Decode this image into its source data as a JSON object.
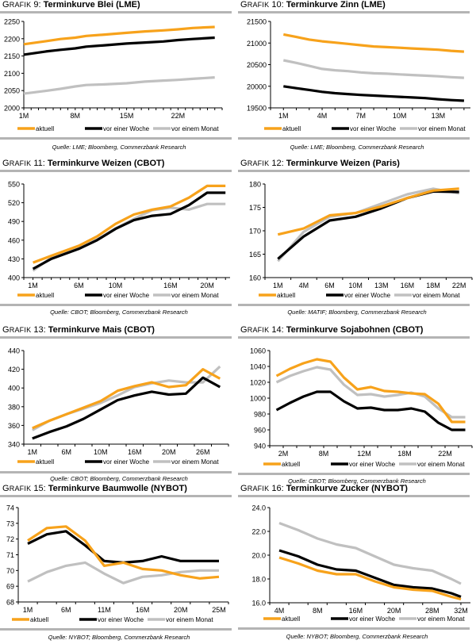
{
  "legend_labels": [
    "aktuell",
    "vor einer Woche",
    "vor einem Monat"
  ],
  "series_colors": {
    "aktuell": "#f7a21b",
    "vor einer Woche": "#000000",
    "vor einem Monat": "#c0c0c0"
  },
  "chart_data": [
    {
      "type": "line",
      "prefix": "Grafik",
      "number": "9:",
      "title": "Terminkurve Blei (LME)",
      "source": "Quelle: LME; Bloomberg, Commerzbank Research",
      "ylim": [
        2000,
        2250
      ],
      "yticks": [
        "2000",
        "2050",
        "2100",
        "2150",
        "2200",
        "2250"
      ],
      "xlim": [
        1,
        28
      ],
      "xticks": [
        {
          "x": 1,
          "label": "1M"
        },
        {
          "x": 8,
          "label": "8M"
        },
        {
          "x": 15,
          "label": "15M"
        },
        {
          "x": 22,
          "label": "22M"
        }
      ],
      "x": [
        1,
        4,
        6,
        8,
        9.5,
        12,
        15,
        17.5,
        20,
        22,
        24,
        27
      ],
      "series": [
        {
          "name": "aktuell",
          "values": [
            2184,
            2193,
            2199,
            2203,
            2208,
            2212,
            2217,
            2221,
            2224,
            2227,
            2231,
            2234
          ]
        },
        {
          "name": "vor einer Woche",
          "values": [
            2154,
            2163,
            2168,
            2172,
            2177,
            2181,
            2186,
            2189,
            2192,
            2196,
            2199,
            2203
          ]
        },
        {
          "name": "vor einem Monat",
          "values": [
            2041,
            2049,
            2055,
            2062,
            2066,
            2068,
            2071,
            2076,
            2079,
            2081,
            2084,
            2088
          ]
        }
      ],
      "legend": "bottom",
      "grid": false
    },
    {
      "type": "line",
      "prefix": "Grafik",
      "number": "10:",
      "title": "Terminkurve Zinn (LME)",
      "source": "Quelle: LME; Bloomberg, Commerzbank Research",
      "ylim": [
        19500,
        21500
      ],
      "yticks": [
        "19500",
        "20000",
        "20500",
        "21000",
        "21500"
      ],
      "xlim": [
        0,
        15.5
      ],
      "xticks": [
        {
          "x": 1,
          "label": "1M"
        },
        {
          "x": 4,
          "label": "4M"
        },
        {
          "x": 7,
          "label": "7M"
        },
        {
          "x": 10,
          "label": "10M"
        },
        {
          "x": 13,
          "label": "13M"
        }
      ],
      "x": [
        1,
        2,
        3,
        4,
        5,
        6,
        7,
        8,
        9,
        10,
        11,
        12,
        13,
        14,
        15
      ],
      "series": [
        {
          "name": "aktuell",
          "values": [
            21200,
            21140,
            21080,
            21040,
            21010,
            20980,
            20950,
            20920,
            20905,
            20890,
            20875,
            20860,
            20845,
            20820,
            20800
          ]
        },
        {
          "name": "vor einer Woche",
          "values": [
            20000,
            19955,
            19915,
            19870,
            19840,
            19820,
            19800,
            19785,
            19770,
            19755,
            19740,
            19725,
            19700,
            19680,
            19665
          ]
        },
        {
          "name": "vor einem Monat",
          "values": [
            20600,
            20540,
            20470,
            20400,
            20370,
            20350,
            20320,
            20300,
            20290,
            20275,
            20260,
            20245,
            20230,
            20210,
            20195
          ]
        }
      ],
      "legend": "bottom",
      "grid": false
    },
    {
      "type": "line",
      "prefix": "Grafik",
      "number": "11:",
      "title": "Terminkurve Weizen (CBOT)",
      "source": "Quelle: CBOT; Bloomberg, Commerzbank Research",
      "ylim": [
        400,
        550
      ],
      "yticks": [
        "400",
        "430",
        "460",
        "490",
        "520",
        "550"
      ],
      "xlim": [
        0,
        22.5
      ],
      "xticks": [
        {
          "x": 1,
          "label": "1M"
        },
        {
          "x": 6,
          "label": "6M"
        },
        {
          "x": 10,
          "label": "10M"
        },
        {
          "x": 16,
          "label": "16M"
        },
        {
          "x": 20,
          "label": "20M"
        }
      ],
      "x": [
        1,
        3,
        6,
        8,
        10,
        12,
        14,
        16,
        18,
        20,
        22
      ],
      "series": [
        {
          "name": "aktuell",
          "values": [
            424,
            435,
            451,
            466,
            486,
            501,
            509,
            514,
            528,
            547,
            547
          ]
        },
        {
          "name": "vor einer Woche",
          "values": [
            414,
            430,
            446,
            460,
            478,
            492,
            499,
            502,
            516,
            536,
            536
          ]
        },
        {
          "name": "vor einem Monat",
          "values": [
            411,
            432,
            448,
            461,
            479,
            494,
            508,
            512,
            509,
            518,
            518
          ]
        }
      ],
      "legend": "bottom",
      "grid": false
    },
    {
      "type": "line",
      "prefix": "Grafik",
      "number": "12:",
      "title": "Terminkurve Weizen (Paris)",
      "source": "Quelle: MATIF; Bloomberg, Commerzbank Research",
      "ylim": [
        160,
        180
      ],
      "yticks": [
        "160",
        "165",
        "170",
        "175",
        "180"
      ],
      "xlim": [
        0,
        8
      ],
      "xticks": [
        {
          "x": 0.5,
          "label": "1M"
        },
        {
          "x": 1.5,
          "label": "4M"
        },
        {
          "x": 2.5,
          "label": "6M"
        },
        {
          "x": 3.5,
          "label": "10M"
        },
        {
          "x": 4.5,
          "label": "13M"
        },
        {
          "x": 5.5,
          "label": "16M"
        },
        {
          "x": 6.5,
          "label": "18M"
        },
        {
          "x": 7.5,
          "label": "22M"
        }
      ],
      "x": [
        0.5,
        1.5,
        2.5,
        3.5,
        4.5,
        5.5,
        6.5,
        7.5
      ],
      "series": [
        {
          "name": "aktuell",
          "values": [
            169.2,
            170.5,
            173.3,
            173.8,
            175.2,
            177.0,
            178.6,
            179.0
          ]
        },
        {
          "name": "vor einer Woche",
          "values": [
            164.0,
            168.8,
            172.2,
            173.0,
            174.8,
            177.0,
            178.4,
            178.3
          ]
        },
        {
          "name": "vor einem Monat",
          "values": [
            163.5,
            169.8,
            173.0,
            173.8,
            175.8,
            177.8,
            179.0,
            178.0
          ]
        }
      ],
      "legend": "bottom",
      "grid": false
    },
    {
      "type": "line",
      "prefix": "Grafik",
      "number": "13:",
      "title": "Terminkurve Mais (CBOT)",
      "source": "Quelle: CBOT; Bloomberg, Commerzbank Research",
      "ylim": [
        340,
        440
      ],
      "yticks": [
        "340",
        "360",
        "380",
        "400",
        "420",
        "440"
      ],
      "xlim": [
        0,
        12
      ],
      "xticks": [
        {
          "x": 0.5,
          "label": "1M"
        },
        {
          "x": 2.5,
          "label": "6M"
        },
        {
          "x": 4.5,
          "label": "10M"
        },
        {
          "x": 6.5,
          "label": "16M"
        },
        {
          "x": 8.5,
          "label": "20M"
        },
        {
          "x": 10.5,
          "label": "26M"
        }
      ],
      "x": [
        0.5,
        1.5,
        2.5,
        3.5,
        4.5,
        5.5,
        6.5,
        7.5,
        8.5,
        9.5,
        10.5,
        11.5
      ],
      "series": [
        {
          "name": "aktuell",
          "values": [
            357,
            365,
            372,
            379,
            386,
            397,
            402,
            406,
            401,
            403,
            420,
            410
          ]
        },
        {
          "name": "vor einer Woche",
          "values": [
            346,
            353,
            359,
            367,
            377,
            387,
            392,
            396,
            393,
            394,
            411,
            401
          ]
        },
        {
          "name": "vor einem Monat",
          "values": [
            355,
            365,
            372,
            378,
            384,
            392,
            401,
            405,
            408,
            406,
            406,
            423
          ]
        }
      ],
      "legend": "bottom",
      "grid": false
    },
    {
      "type": "line",
      "prefix": "Grafik",
      "number": "14:",
      "title": "Terminkurve Sojabohnen (CBOT)",
      "source": "Quelle: CBOT; Bloomberg, Commerzbank Research",
      "ylim": [
        940,
        1060
      ],
      "yticks": [
        "940",
        "960",
        "980",
        "1000",
        "1020",
        "1040",
        "1060"
      ],
      "xlim": [
        0,
        15
      ],
      "xticks": [
        {
          "x": 1,
          "label": "2M"
        },
        {
          "x": 4,
          "label": "8M"
        },
        {
          "x": 7,
          "label": "12M"
        },
        {
          "x": 10,
          "label": "18M"
        },
        {
          "x": 13,
          "label": "22M"
        }
      ],
      "x": [
        0.5,
        1.5,
        2.5,
        3.5,
        4.5,
        5.5,
        6.5,
        7.5,
        8.5,
        9.5,
        10.5,
        11.5,
        12.5,
        13.5,
        14.5
      ],
      "series": [
        {
          "name": "aktuell",
          "values": [
            1028,
            1037,
            1044,
            1049,
            1046,
            1026,
            1011,
            1014,
            1009,
            1008,
            1006,
            1005,
            993,
            970,
            970
          ]
        },
        {
          "name": "vor einer Woche",
          "values": [
            985,
            994,
            1002,
            1008,
            1008,
            996,
            987,
            988,
            985,
            985,
            987,
            983,
            969,
            960,
            960
          ]
        },
        {
          "name": "vor einem Monat",
          "values": [
            1020,
            1028,
            1034,
            1039,
            1036,
            1017,
            1004,
            1005,
            1002,
            1004,
            1007,
            1002,
            987,
            976,
            976
          ]
        }
      ],
      "legend": "bottom",
      "grid": false
    },
    {
      "type": "line",
      "prefix": "Grafik",
      "number": "15:",
      "title": "Terminkurve Baumwolle (NYBOT)",
      "source": "Quelle: NYBOT; Bloomberg, Commerzbank Research",
      "ylim": [
        68,
        74
      ],
      "yticks": [
        "68",
        "69",
        "70",
        "71",
        "72",
        "73",
        "74"
      ],
      "xlim": [
        0,
        11
      ],
      "xticks": [
        {
          "x": 0.5,
          "label": "1M"
        },
        {
          "x": 2.5,
          "label": "6M"
        },
        {
          "x": 4.5,
          "label": "11M"
        },
        {
          "x": 6.5,
          "label": "16M"
        },
        {
          "x": 8.5,
          "label": "20M"
        },
        {
          "x": 10.5,
          "label": "25M"
        }
      ],
      "x": [
        0.5,
        1.5,
        2.5,
        3.5,
        4.5,
        5.5,
        6.5,
        7.5,
        8.5,
        9.5,
        10.5
      ],
      "series": [
        {
          "name": "aktuell",
          "values": [
            71.9,
            72.7,
            72.8,
            71.9,
            70.3,
            70.5,
            70.1,
            70.0,
            69.7,
            69.5,
            69.6
          ]
        },
        {
          "name": "vor einer Woche",
          "values": [
            71.7,
            72.3,
            72.5,
            71.6,
            70.6,
            70.5,
            70.6,
            70.9,
            70.6,
            70.6,
            70.6
          ]
        },
        {
          "name": "vor einem Monat",
          "values": [
            69.3,
            69.9,
            70.3,
            70.5,
            69.8,
            69.2,
            69.6,
            69.7,
            69.9,
            70.0,
            70.0
          ]
        }
      ],
      "legend": "bottom",
      "grid": false
    },
    {
      "type": "line",
      "prefix": "Grafik",
      "number": "16:",
      "title": "Terminkurve Zucker (NYBOT)",
      "source": "Quelle: NYBOT; Bloomberg, Commerzbank Research",
      "ylim": [
        16.0,
        24.0
      ],
      "yticks": [
        "16.0",
        "18.0",
        "20.0",
        "22.0",
        "24.0"
      ],
      "xlim": [
        0,
        10.5
      ],
      "xticks": [
        {
          "x": 0.5,
          "label": "4M"
        },
        {
          "x": 2.5,
          "label": "8M"
        },
        {
          "x": 4.5,
          "label": "16M"
        },
        {
          "x": 6.5,
          "label": "20M"
        },
        {
          "x": 8.5,
          "label": "28M"
        },
        {
          "x": 10.0,
          "label": "32M"
        }
      ],
      "x": [
        0.5,
        1.5,
        2.5,
        3.5,
        4.5,
        5.5,
        6.5,
        7.5,
        8.5,
        9.5,
        10.0
      ],
      "series": [
        {
          "name": "aktuell",
          "values": [
            19.8,
            19.3,
            18.7,
            18.4,
            18.4,
            17.8,
            17.3,
            17.1,
            17.0,
            16.5,
            16.3
          ]
        },
        {
          "name": "vor einer Woche",
          "values": [
            20.4,
            19.9,
            19.2,
            18.8,
            18.7,
            18.1,
            17.5,
            17.3,
            17.2,
            16.8,
            16.5
          ]
        },
        {
          "name": "vor einem Monat",
          "values": [
            22.7,
            22.1,
            21.4,
            20.9,
            20.6,
            19.9,
            19.2,
            18.9,
            18.7,
            18.0,
            17.6
          ]
        }
      ],
      "legend": "bottom",
      "grid": false
    }
  ]
}
